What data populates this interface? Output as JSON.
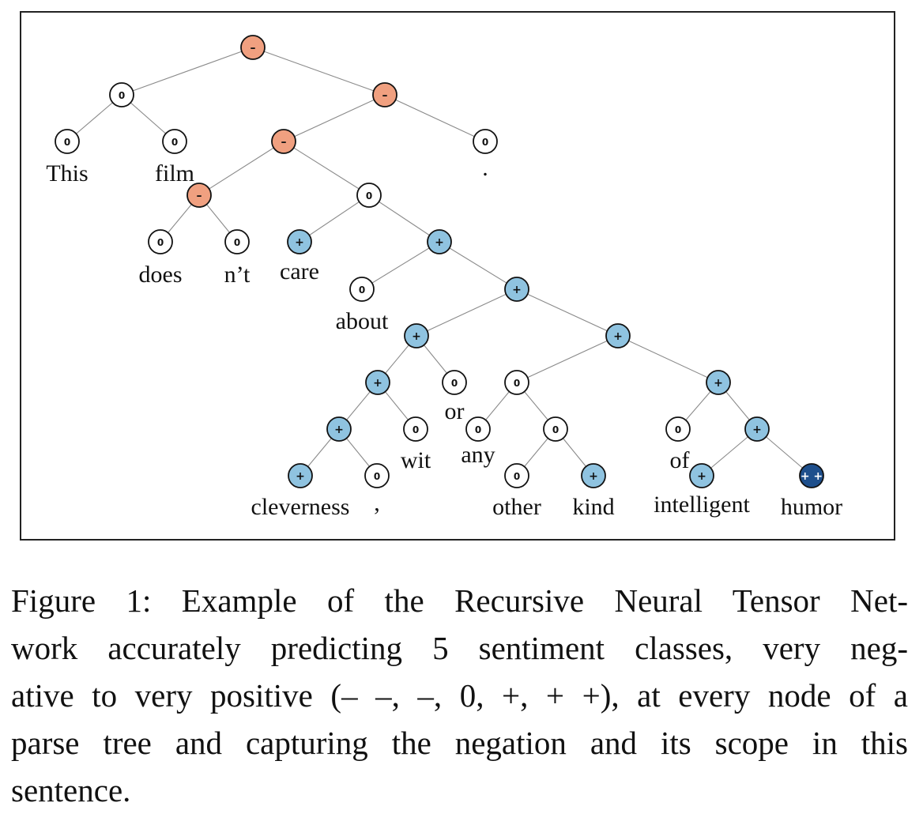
{
  "figure": {
    "nodes": [
      {
        "id": "n_root",
        "label": "–",
        "sentiment": "negative"
      },
      {
        "id": "n_this_film",
        "label": "0",
        "sentiment": "neutral"
      },
      {
        "id": "n_this",
        "label": "0",
        "sentiment": "neutral"
      },
      {
        "id": "n_film",
        "label": "0",
        "sentiment": "neutral"
      },
      {
        "id": "n_rest",
        "label": "–",
        "sentiment": "negative"
      },
      {
        "id": "n_vp",
        "label": "–",
        "sentiment": "negative"
      },
      {
        "id": "n_period",
        "label": "0",
        "sentiment": "neutral"
      },
      {
        "id": "n_doesnt",
        "label": "–",
        "sentiment": "negative"
      },
      {
        "id": "n_does",
        "label": "0",
        "sentiment": "neutral"
      },
      {
        "id": "n_nt",
        "label": "0",
        "sentiment": "neutral"
      },
      {
        "id": "n_care_phrase",
        "label": "0",
        "sentiment": "neutral"
      },
      {
        "id": "n_care",
        "label": "+",
        "sentiment": "positive"
      },
      {
        "id": "n_about_phrase",
        "label": "+",
        "sentiment": "positive"
      },
      {
        "id": "n_about",
        "label": "0",
        "sentiment": "neutral"
      },
      {
        "id": "n_np_big",
        "label": "+",
        "sentiment": "positive"
      },
      {
        "id": "n_clev_or",
        "label": "+",
        "sentiment": "positive"
      },
      {
        "id": "n_any_rest",
        "label": "+",
        "sentiment": "positive"
      },
      {
        "id": "n_clev_wit",
        "label": "+",
        "sentiment": "positive"
      },
      {
        "id": "n_or",
        "label": "0",
        "sentiment": "neutral"
      },
      {
        "id": "n_any_other_kind",
        "label": "0",
        "sentiment": "neutral"
      },
      {
        "id": "n_of_phrase",
        "label": "+",
        "sentiment": "positive"
      },
      {
        "id": "n_clev_comma",
        "label": "+",
        "sentiment": "positive"
      },
      {
        "id": "n_wit",
        "label": "0",
        "sentiment": "neutral"
      },
      {
        "id": "n_any",
        "label": "0",
        "sentiment": "neutral"
      },
      {
        "id": "n_other_kind",
        "label": "0",
        "sentiment": "neutral"
      },
      {
        "id": "n_of",
        "label": "0",
        "sentiment": "neutral"
      },
      {
        "id": "n_intel_humor",
        "label": "+",
        "sentiment": "positive"
      },
      {
        "id": "n_cleverness",
        "label": "+",
        "sentiment": "positive"
      },
      {
        "id": "n_comma",
        "label": "0",
        "sentiment": "neutral"
      },
      {
        "id": "n_other",
        "label": "0",
        "sentiment": "neutral"
      },
      {
        "id": "n_kind",
        "label": "+",
        "sentiment": "positive"
      },
      {
        "id": "n_intelligent",
        "label": "+",
        "sentiment": "positive"
      },
      {
        "id": "n_humor",
        "label": "+ +",
        "sentiment": "very-positive"
      }
    ],
    "words": [
      {
        "id": "w_this",
        "text": "This"
      },
      {
        "id": "w_film",
        "text": "film"
      },
      {
        "id": "w_period",
        "text": "."
      },
      {
        "id": "w_does",
        "text": "does"
      },
      {
        "id": "w_nt",
        "text": "n’t"
      },
      {
        "id": "w_care",
        "text": "care"
      },
      {
        "id": "w_about",
        "text": "about"
      },
      {
        "id": "w_or",
        "text": "or"
      },
      {
        "id": "w_wit",
        "text": "wit"
      },
      {
        "id": "w_any",
        "text": "any"
      },
      {
        "id": "w_of",
        "text": "of"
      },
      {
        "id": "w_cleverness",
        "text": "cleverness"
      },
      {
        "id": "w_comma",
        "text": ","
      },
      {
        "id": "w_other",
        "text": "other"
      },
      {
        "id": "w_kind",
        "text": "kind"
      },
      {
        "id": "w_intelligent",
        "text": "intelligent"
      },
      {
        "id": "w_humor",
        "text": "humor"
      }
    ],
    "edges": [
      [
        "n_root",
        "n_this_film"
      ],
      [
        "n_root",
        "n_rest"
      ],
      [
        "n_this_film",
        "n_this"
      ],
      [
        "n_this_film",
        "n_film"
      ],
      [
        "n_rest",
        "n_vp"
      ],
      [
        "n_rest",
        "n_period"
      ],
      [
        "n_vp",
        "n_doesnt"
      ],
      [
        "n_vp",
        "n_care_phrase"
      ],
      [
        "n_doesnt",
        "n_does"
      ],
      [
        "n_doesnt",
        "n_nt"
      ],
      [
        "n_care_phrase",
        "n_care"
      ],
      [
        "n_care_phrase",
        "n_about_phrase"
      ],
      [
        "n_about_phrase",
        "n_about"
      ],
      [
        "n_about_phrase",
        "n_np_big"
      ],
      [
        "n_np_big",
        "n_clev_or"
      ],
      [
        "n_np_big",
        "n_any_rest"
      ],
      [
        "n_clev_or",
        "n_clev_wit"
      ],
      [
        "n_clev_or",
        "n_or"
      ],
      [
        "n_any_rest",
        "n_any_other_kind"
      ],
      [
        "n_any_rest",
        "n_of_phrase"
      ],
      [
        "n_clev_wit",
        "n_clev_comma"
      ],
      [
        "n_clev_wit",
        "n_wit"
      ],
      [
        "n_any_other_kind",
        "n_any"
      ],
      [
        "n_any_other_kind",
        "n_other_kind"
      ],
      [
        "n_of_phrase",
        "n_of"
      ],
      [
        "n_of_phrase",
        "n_intel_humor"
      ],
      [
        "n_clev_comma",
        "n_cleverness"
      ],
      [
        "n_clev_comma",
        "n_comma"
      ],
      [
        "n_other_kind",
        "n_other"
      ],
      [
        "n_other_kind",
        "n_kind"
      ],
      [
        "n_intel_humor",
        "n_intelligent"
      ],
      [
        "n_intel_humor",
        "n_humor"
      ]
    ],
    "colors": {
      "negative": "#f0a080",
      "neutral": "#ffffff",
      "positive": "#8fc3e0",
      "very-positive": "#1e4f8c"
    },
    "text_colors": {
      "negative": "#111111",
      "neutral": "#111111",
      "positive": "#111111",
      "very-positive": "#ffffff"
    }
  },
  "caption": {
    "lines": [
      "Figure 1: Example of the Recursive Neural Tensor Net-",
      "work accurately predicting 5 sentiment classes, very neg-",
      "ative to very positive (– –, –, 0, +, + +), at every node of a",
      "parse tree and capturing the negation and its scope in this",
      "sentence."
    ]
  }
}
